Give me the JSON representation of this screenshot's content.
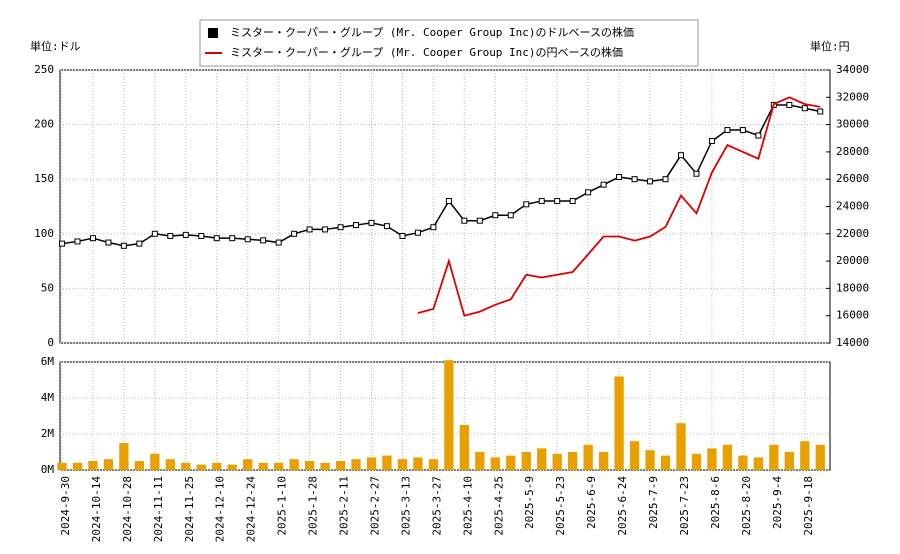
{
  "chart_data": {
    "type": "stock",
    "legend": "top",
    "y_label": "単位:ドル",
    "y2_label": "単位:円",
    "categories": [
      "2024-9-30",
      null,
      "2024-10-14",
      null,
      "2024-10-28",
      null,
      "2024-11-11",
      null,
      "2024-11-25",
      null,
      "2024-12-10",
      null,
      "2024-12-24",
      null,
      "2025-1-10",
      null,
      "2025-1-28",
      null,
      "2025-2-11",
      null,
      "2025-2-27",
      null,
      "2025-3-13",
      null,
      "2025-3-27",
      null,
      "2025-4-10",
      null,
      "2025-4-25",
      null,
      "2025-5-9",
      null,
      "2025-5-23",
      null,
      "2025-6-9",
      null,
      "2025-6-24",
      null,
      "2025-7-9",
      null,
      "2025-7-23",
      null,
      "2025-8-6",
      null,
      "2025-8-20",
      null,
      "2025-9-4",
      null,
      "2025-9-18",
      null
    ],
    "series": [
      {
        "name": "ミスター・クーパー・グループ (Mr. Cooper Group Inc)のドルベースの株価",
        "color": "#000000",
        "axis": "y",
        "values": [
          91,
          93,
          96,
          92,
          89,
          91,
          100,
          98,
          99,
          98,
          96,
          96,
          95,
          94,
          92,
          100,
          104,
          104,
          106,
          108,
          110,
          107,
          98,
          101,
          106,
          130,
          112,
          112,
          117,
          117,
          127,
          130,
          130,
          130,
          138,
          145,
          152,
          150,
          148,
          150,
          172,
          155,
          185,
          195,
          195,
          190,
          218,
          218,
          215,
          212
        ]
      },
      {
        "name": "ミスター・クーパー・グループ (Mr. Cooper Group Inc)の円ベースの株価",
        "color": "#dd0000",
        "axis": "y2",
        "values": [
          null,
          null,
          null,
          null,
          null,
          null,
          null,
          null,
          null,
          null,
          null,
          null,
          null,
          null,
          null,
          null,
          null,
          null,
          null,
          null,
          null,
          null,
          null,
          16200,
          16500,
          20000,
          16000,
          16300,
          16800,
          17200,
          19000,
          18800,
          19000,
          19200,
          20500,
          21800,
          21800,
          21500,
          21800,
          22500,
          24800,
          23500,
          26500,
          28500,
          28000,
          27500,
          31500,
          32000,
          31500,
          31300
        ]
      },
      {
        "name": "volume",
        "color": "#e8a000",
        "axis": "volume",
        "values": [
          0.4,
          0.4,
          0.5,
          0.6,
          1.5,
          0.5,
          0.9,
          0.6,
          0.4,
          0.3,
          0.4,
          0.3,
          0.6,
          0.4,
          0.4,
          0.6,
          0.5,
          0.4,
          0.5,
          0.6,
          0.7,
          0.8,
          0.6,
          0.7,
          0.6,
          6.1,
          2.5,
          1.0,
          0.7,
          0.8,
          1.0,
          1.2,
          0.9,
          1.0,
          1.4,
          1.0,
          5.2,
          1.6,
          1.1,
          0.8,
          2.6,
          0.9,
          1.2,
          1.4,
          0.8,
          0.7,
          1.4,
          1.0,
          1.6,
          1.4
        ]
      }
    ],
    "ylim": [
      0,
      250
    ],
    "yticks": [
      0,
      50,
      100,
      150,
      200,
      250
    ],
    "y2lim": [
      14000,
      34000
    ],
    "y2ticks": [
      14000,
      16000,
      18000,
      20000,
      22000,
      24000,
      26000,
      28000,
      30000,
      32000,
      34000
    ],
    "volume_ylim": [
      0,
      6
    ],
    "volume_yticks": [
      {
        "value": 0,
        "label": "0M"
      },
      {
        "value": 2,
        "label": "2M"
      },
      {
        "value": 4,
        "label": "4M"
      },
      {
        "value": 6,
        "label": "6M"
      }
    ],
    "grid": true
  }
}
